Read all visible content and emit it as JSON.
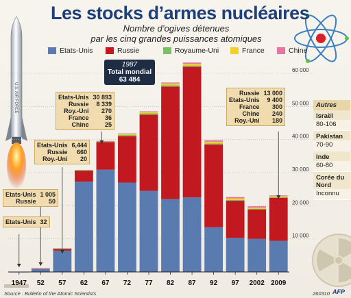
{
  "title": "Les stocks d’armes nucléaires",
  "subtitle_line1": "Nombre d’ogives détenues",
  "subtitle_line2": "par les cinq grandes puissances atomiques",
  "colors": {
    "us": "#5a7bb0",
    "ru": "#c21820",
    "uk": "#7dbf66",
    "fr": "#f2d027",
    "cn": "#e377a3"
  },
  "chart_data": {
    "type": "bar",
    "stacked": true,
    "categories": [
      "1947",
      "52",
      "57",
      "62",
      "67",
      "72",
      "77",
      "82",
      "87",
      "92",
      "97",
      "2002",
      "2009"
    ],
    "series": [
      {
        "name": "Etats-Unis",
        "values": [
          32,
          1005,
          6444,
          27300,
          30893,
          27000,
          24500,
          22000,
          22500,
          13500,
          10300,
          10000,
          9400
        ]
      },
      {
        "name": "Russie",
        "values": [
          0,
          50,
          660,
          3300,
          8339,
          14000,
          23000,
          34000,
          39500,
          25000,
          11200,
          8900,
          13000
        ]
      },
      {
        "name": "Royaume-Uni",
        "values": [
          0,
          0,
          20,
          200,
          270,
          420,
          430,
          420,
          350,
          300,
          280,
          200,
          180
        ]
      },
      {
        "name": "France",
        "values": [
          0,
          0,
          0,
          0,
          36,
          300,
          400,
          500,
          500,
          540,
          450,
          350,
          300
        ]
      },
      {
        "name": "Chine",
        "values": [
          0,
          0,
          0,
          0,
          25,
          150,
          200,
          300,
          400,
          430,
          400,
          400,
          240
        ]
      }
    ],
    "ylim": [
      0,
      60000
    ],
    "yticks": [
      "10 000",
      "20 000",
      "30 000",
      "40 000",
      "50 000",
      "60 000"
    ],
    "ytick_values": [
      10000,
      20000,
      30000,
      40000,
      50000,
      60000
    ],
    "legend_position": "top"
  },
  "annotations": {
    "a1947": {
      "rows": [
        {
          "k": "Etats-Unis",
          "v": "32"
        }
      ]
    },
    "a1952": {
      "rows": [
        {
          "k": "Etats-Unis",
          "v": "1 005"
        },
        {
          "k": "Russie",
          "v": "50"
        }
      ]
    },
    "a1957": {
      "rows": [
        {
          "k": "Etats-Unis",
          "v": "6,444"
        },
        {
          "k": "Russie",
          "v": "660"
        },
        {
          "k": "Roy.-Uni",
          "v": "20"
        }
      ]
    },
    "a1967": {
      "rows": [
        {
          "k": "Etats-Unis",
          "v": "30 893"
        },
        {
          "k": "Russie",
          "v": "8 339"
        },
        {
          "k": "Roy.-Uni",
          "v": "270"
        },
        {
          "k": "France",
          "v": "36"
        },
        {
          "k": "Chine",
          "v": "25"
        }
      ]
    },
    "a2009": {
      "rows": [
        {
          "k": "Russie",
          "v": "13 000"
        },
        {
          "k": "Etats-Unis",
          "v": "9 400"
        },
        {
          "k": "France",
          "v": "300"
        },
        {
          "k": "Chine",
          "v": "240"
        },
        {
          "k": "Roy.-Uni",
          "v": "180"
        }
      ]
    },
    "peak_year": "1987",
    "peak_label": "Total mondial",
    "peak_value": "63 484"
  },
  "others": {
    "header": "Autres",
    "items": [
      {
        "country": "Israël",
        "count": "80-106"
      },
      {
        "country": "Pakistan",
        "count": "70-90"
      },
      {
        "country": "Inde",
        "count": "60-80"
      },
      {
        "country": "Corée du Nord",
        "count": "Inconnu"
      }
    ]
  },
  "source": "Source : Bulletin of the Atomic Scientists",
  "code": "260310",
  "agency": "AFP"
}
